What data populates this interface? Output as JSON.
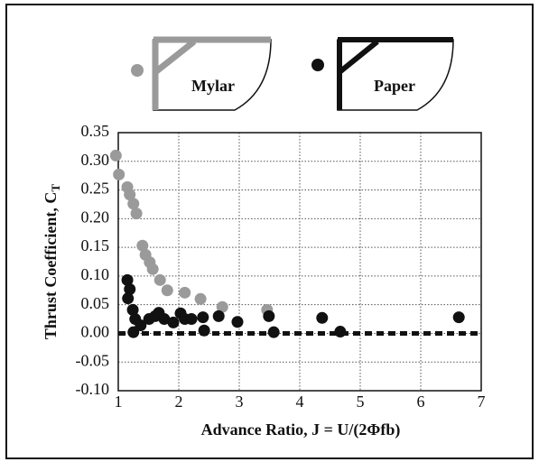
{
  "chart_data": {
    "type": "scatter",
    "x_label": "Advance Ratio, J = U/(2Φfb)",
    "y_label": "Thrust Coefficient, C",
    "y_label_subscript": "T",
    "xlim": [
      1,
      7
    ],
    "xticks": [
      1,
      2,
      3,
      4,
      5,
      6,
      7
    ],
    "ylim": [
      -0.1,
      0.35
    ],
    "yticks": [
      {
        "value": -0.1,
        "label": "-0.10"
      },
      {
        "value": -0.05,
        "label": "-0.05"
      },
      {
        "value": 0,
        "label": "0.00"
      },
      {
        "value": 0.05,
        "label": "0.05"
      },
      {
        "value": 0.1,
        "label": "0.10"
      },
      {
        "value": 0.15,
        "label": "0.15"
      },
      {
        "value": 0.2,
        "label": "0.20"
      },
      {
        "value": 0.25,
        "label": "0.25"
      },
      {
        "value": 0.3,
        "label": "0.30"
      },
      {
        "value": 0.35,
        "label": "0.35"
      }
    ],
    "grid": true,
    "reference_line_y": 0,
    "series": [
      {
        "name": "Mylar",
        "color": "#9a9a9a",
        "x": [
          0.96,
          1.01,
          1.15,
          1.19,
          1.25,
          1.3,
          1.4,
          1.45,
          1.52,
          1.57,
          1.69,
          1.81,
          2.1,
          2.36,
          2.72,
          3.46
        ],
        "values": [
          0.31,
          0.277,
          0.255,
          0.242,
          0.226,
          0.209,
          0.153,
          0.137,
          0.124,
          0.112,
          0.093,
          0.075,
          0.071,
          0.06,
          0.046,
          0.041
        ]
      },
      {
        "name": "Paper",
        "color": "#111111",
        "x": [
          1.15,
          1.19,
          1.16,
          1.24,
          1.28,
          1.25,
          1.37,
          1.51,
          1.61,
          1.67,
          1.76,
          1.91,
          2.03,
          2.1,
          2.21,
          2.4,
          2.42,
          2.66,
          2.97,
          3.49,
          3.57,
          4.37,
          4.67,
          6.63
        ],
        "values": [
          0.093,
          0.077,
          0.061,
          0.041,
          0.025,
          0.002,
          0.014,
          0.025,
          0.03,
          0.036,
          0.025,
          0.019,
          0.035,
          0.025,
          0.025,
          0.028,
          0.005,
          0.03,
          0.02,
          0.03,
          0.002,
          0.027,
          0.003,
          0.028
        ]
      }
    ]
  }
}
